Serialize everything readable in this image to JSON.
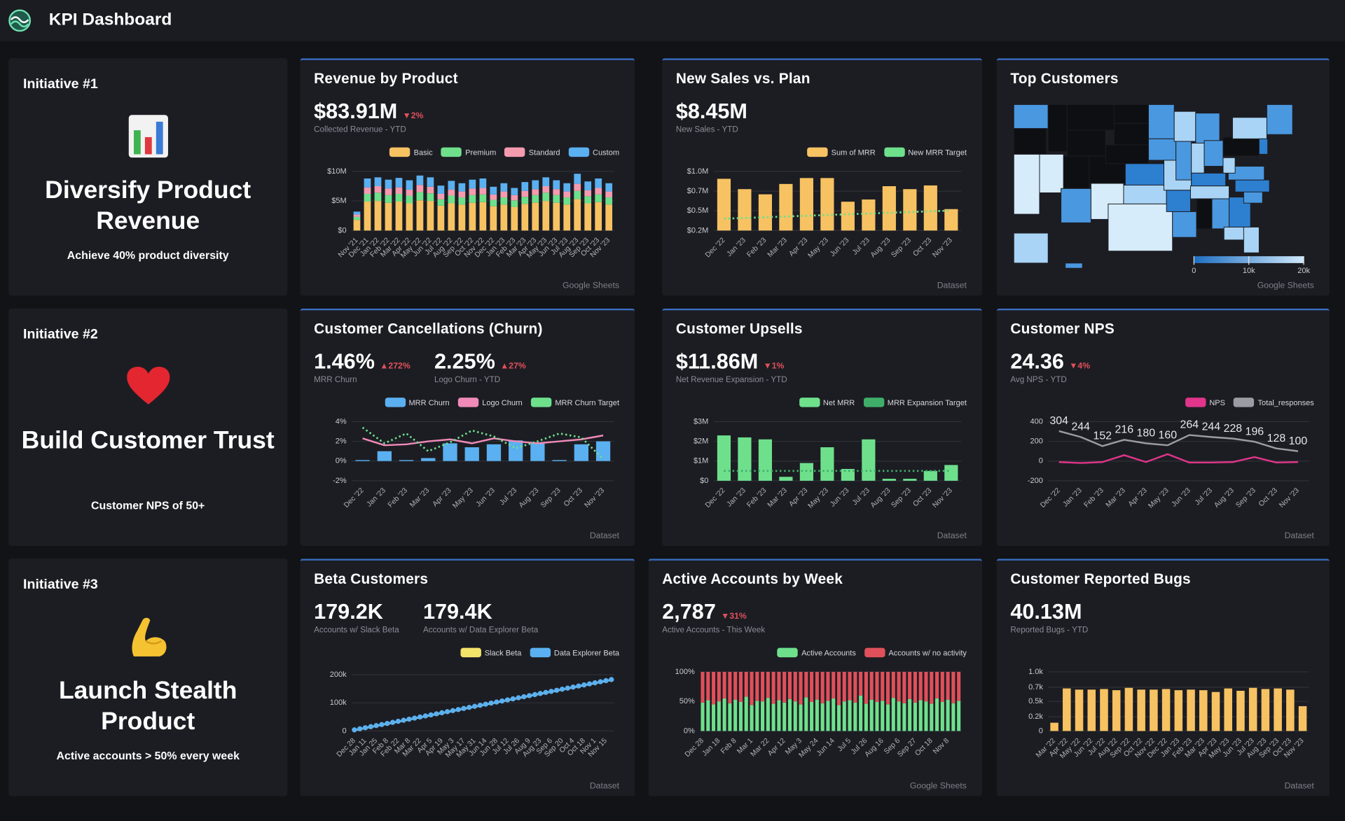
{
  "header": {
    "title": "KPI Dashboard"
  },
  "initiatives": [
    {
      "label": "Initiative #1",
      "title": "Diversify Product Revenue",
      "subtitle": "Achieve 40% product diversity"
    },
    {
      "label": "Initiative #2",
      "title": "Build Customer Trust",
      "subtitle": "Customer NPS of 50+"
    },
    {
      "label": "Initiative #3",
      "title": "Launch Stealth Product",
      "subtitle": "Active accounts > 50% every week"
    }
  ],
  "chart_data": [
    {
      "type": "stacked_bar",
      "title": "Revenue by Product",
      "source": "Google Sheets",
      "kpis": [
        {
          "value": "$83.91M",
          "change": "▼2%",
          "label": "Collected Revenue - YTD"
        }
      ],
      "categories": [
        "Nov '21",
        "Dec '21",
        "Jan '22",
        "Feb '22",
        "Mar '22",
        "Apr '22",
        "May '22",
        "Jun '22",
        "Jul '22",
        "Aug '22",
        "Sep '22",
        "Oct '22",
        "Nov '22",
        "Dec '22",
        "Jan '23",
        "Feb '23",
        "Mar '23",
        "Apr '23",
        "May '23",
        "Jun '23",
        "Jul '23",
        "Aug '23",
        "Sep '23",
        "Oct '23",
        "Nov '23"
      ],
      "series": [
        {
          "name": "Basic",
          "color": "#f7c262",
          "values": [
            1.8,
            4.9,
            5.0,
            4.7,
            4.9,
            4.6,
            5.1,
            5.0,
            4.2,
            4.6,
            4.4,
            4.7,
            4.8,
            4.1,
            4.4,
            4.0,
            4.5,
            4.7,
            5.0,
            4.7,
            4.4,
            5.3,
            4.6,
            4.8,
            4.4
          ]
        },
        {
          "name": "Premium",
          "color": "#6ee08c",
          "values": [
            0.5,
            1.3,
            1.4,
            1.3,
            1.3,
            1.3,
            1.4,
            1.3,
            1.1,
            1.3,
            1.2,
            1.3,
            1.3,
            1.1,
            1.2,
            1.1,
            1.2,
            1.3,
            1.4,
            1.3,
            1.2,
            1.4,
            1.2,
            1.3,
            1.2
          ]
        },
        {
          "name": "Standard",
          "color": "#f59bb0",
          "values": [
            0.4,
            1.1,
            1.1,
            1.1,
            1.1,
            1.0,
            1.2,
            1.1,
            0.9,
            1.0,
            1.0,
            1.1,
            1.1,
            0.9,
            1.0,
            0.9,
            1.0,
            1.0,
            1.1,
            1.0,
            1.0,
            1.2,
            1.0,
            1.1,
            1.0
          ]
        },
        {
          "name": "Custom",
          "color": "#5ab0f0",
          "values": [
            0.5,
            1.5,
            1.5,
            1.5,
            1.6,
            1.6,
            1.6,
            1.6,
            1.4,
            1.5,
            1.4,
            1.5,
            1.6,
            1.3,
            1.4,
            1.2,
            1.5,
            1.5,
            1.5,
            1.5,
            1.4,
            1.7,
            1.5,
            1.6,
            1.4
          ]
        }
      ],
      "ylim": [
        0,
        10
      ],
      "yticks": [
        {
          "value": 0,
          "label": "$0"
        },
        {
          "value": 5,
          "label": "$5M"
        },
        {
          "value": 10,
          "label": "$10M"
        }
      ]
    },
    {
      "type": "combo",
      "title": "New Sales vs. Plan",
      "source": "Dataset",
      "kpis": [
        {
          "value": "$8.45M",
          "label": "New Sales - YTD"
        }
      ],
      "categories": [
        "Dec '22",
        "Jan '23",
        "Feb '23",
        "Mar '23",
        "Apr '23",
        "May '23",
        "Jun '23",
        "Jul '23",
        "Aug '23",
        "Sep '23",
        "Oct '23",
        "Nov '23"
      ],
      "series": [
        {
          "name": "Sum of MRR",
          "color": "#f7c262",
          "mark": "bar",
          "values": [
            0.9,
            0.76,
            0.69,
            0.83,
            0.91,
            0.91,
            0.59,
            0.62,
            0.8,
            0.76,
            0.81,
            0.49
          ]
        },
        {
          "name": "New MRR Target",
          "color": "#6ee08c",
          "mark": "line",
          "dash": true,
          "values": [
            0.36,
            0.37,
            0.38,
            0.39,
            0.4,
            0.41,
            0.42,
            0.43,
            0.44,
            0.45,
            0.46,
            0.47
          ]
        }
      ],
      "ylim": [
        0.2,
        1.0
      ],
      "yticks": [
        {
          "value": 0.2,
          "label": "$0.2M"
        },
        {
          "value": 0.467,
          "label": "$0.5M"
        },
        {
          "value": 0.733,
          "label": "$0.7M"
        },
        {
          "value": 1.0,
          "label": "$1.0M"
        }
      ]
    },
    {
      "type": "map",
      "title": "Top Customers",
      "source": "Google Sheets",
      "colorbar": {
        "lim": [
          0,
          20000
        ],
        "colors": [
          "#1f6fc2",
          "#cfe8fb"
        ],
        "ticks": [
          0,
          {
            "value": 10000,
            "label": "10k"
          },
          {
            "value": 20000,
            "label": "20k"
          }
        ]
      }
    },
    {
      "type": "combo",
      "title": "Customer Cancellations (Churn)",
      "source": "Dataset",
      "kpis": [
        {
          "value": "1.46%",
          "change": "▲272%",
          "label": "MRR Churn"
        },
        {
          "value": "2.25%",
          "change": "▲27%",
          "label": "Logo Churn - YTD"
        }
      ],
      "categories": [
        "Dec '22",
        "Jan '23",
        "Feb '23",
        "Mar '23",
        "Apr '23",
        "May '23",
        "Jun '23",
        "Jul '23",
        "Aug '23",
        "Sep '23",
        "Oct '23",
        "Nov '23"
      ],
      "series": [
        {
          "name": "MRR Churn",
          "color": "#5ab0f0",
          "mark": "bar",
          "values": [
            0.1,
            1.0,
            0.1,
            0.3,
            1.8,
            1.4,
            1.7,
            2.1,
            1.9,
            0.1,
            1.7,
            2.0
          ]
        },
        {
          "name": "Logo Churn",
          "color": "#f08ab8",
          "mark": "line",
          "values": [
            2.3,
            1.6,
            1.7,
            2.0,
            2.2,
            1.8,
            2.3,
            2.0,
            1.8,
            2.0,
            2.2,
            2.6
          ]
        },
        {
          "name": "MRR Churn Target",
          "color": "#6ee08c",
          "mark": "line",
          "dash": true,
          "values": [
            3.4,
            1.8,
            2.8,
            1.0,
            1.9,
            3.1,
            2.5,
            1.3,
            2.0,
            2.8,
            2.4,
            0.2
          ]
        }
      ],
      "ylim": [
        -2,
        4
      ],
      "yticks": [
        {
          "value": -2,
          "label": "-2%"
        },
        {
          "value": 0,
          "label": "0%"
        },
        {
          "value": 2,
          "label": "2%"
        },
        {
          "value": 4,
          "label": "4%"
        }
      ]
    },
    {
      "type": "combo",
      "title": "Customer Upsells",
      "source": "Dataset",
      "kpis": [
        {
          "value": "$11.86M",
          "change": "▼1%",
          "label": "Net Revenue Expansion - YTD"
        }
      ],
      "categories": [
        "Dec '22",
        "Jan '23",
        "Feb '23",
        "Mar '23",
        "Apr '23",
        "May '23",
        "Jun '23",
        "Jul '23",
        "Aug '23",
        "Sep '23",
        "Oct '23",
        "Nov '23"
      ],
      "series": [
        {
          "name": "Net MRR",
          "color": "#6ee08c",
          "mark": "bar",
          "values": [
            2.3,
            2.2,
            2.1,
            0.2,
            0.9,
            1.7,
            0.6,
            2.1,
            0.1,
            0.1,
            0.5,
            0.8
          ]
        },
        {
          "name": "MRR Expansion Target",
          "color": "#3fae6a",
          "mark": "line",
          "dash": true,
          "values": [
            0.5,
            0.5,
            0.5,
            0.5,
            0.5,
            0.5,
            0.5,
            0.5,
            0.5,
            0.5,
            0.5,
            0.5
          ]
        }
      ],
      "ylim": [
        0,
        3
      ],
      "yticks": [
        {
          "value": 0,
          "label": "$0"
        },
        {
          "value": 1,
          "label": "$1M"
        },
        {
          "value": 2,
          "label": "$2M"
        },
        {
          "value": 3,
          "label": "$3M"
        }
      ]
    },
    {
      "type": "line",
      "title": "Customer NPS",
      "source": "Dataset",
      "kpis": [
        {
          "value": "24.36",
          "change": "▼4%",
          "label": "Avg NPS - YTD"
        }
      ],
      "categories": [
        "Dec '22",
        "Jan '23",
        "Feb '23",
        "Mar '23",
        "Apr '23",
        "May '23",
        "Jun '23",
        "Jul '23",
        "Aug '23",
        "Sep '23",
        "Oct '23",
        "Nov '23"
      ],
      "series": [
        {
          "name": "NPS",
          "color": "#e0358a",
          "values": [
            -10,
            -20,
            -10,
            60,
            -10,
            70,
            -15,
            -15,
            -10,
            40,
            -15,
            -10
          ]
        },
        {
          "name": "Total_responses",
          "color": "#9a9ca3",
          "data_labels": true,
          "values": [
            304,
            244,
            152,
            216,
            180,
            160,
            264,
            244,
            228,
            196,
            128,
            100
          ]
        }
      ],
      "ylim": [
        -200,
        400
      ],
      "yticks": [
        -200,
        0,
        200,
        400
      ]
    },
    {
      "type": "line",
      "title": "Beta Customers",
      "source": "Dataset",
      "kpis": [
        {
          "value": "179.2K",
          "label": "Accounts w/ Slack Beta"
        },
        {
          "value": "179.4K",
          "label": "Accounts w/ Data Explorer Beta"
        }
      ],
      "categories": [
        "Dec 28",
        null,
        "Jan 11",
        null,
        "Jan 25",
        null,
        "Feb 8",
        null,
        "Feb 22",
        null,
        "Mar 8",
        null,
        "Mar 22",
        null,
        "Apr 5",
        null,
        "Apr 19",
        null,
        "May 3",
        null,
        "May 17",
        null,
        "May 31",
        null,
        "Jun 14",
        null,
        "Jun 28",
        null,
        "Jul 12",
        null,
        "Jul 26",
        null,
        "Aug 9",
        null,
        "Aug 23",
        null,
        "Sep 6",
        null,
        "Sep 20",
        null,
        "Oct 4",
        null,
        "Oct 18",
        null,
        "Nov 1",
        null,
        "Nov 15",
        null
      ],
      "series": [
        {
          "name": "Slack Beta",
          "color": "#f5e46a",
          "values": [
            2.5,
            6.3,
            10.1,
            13.9,
            17.7,
            21.5,
            25.3,
            29.1,
            32.9,
            36.7,
            40.5,
            44.3,
            48.1,
            51.9,
            55.7,
            59.5,
            63.3,
            67.1,
            70.9,
            74.7,
            78.5,
            82.3,
            86.1,
            89.9,
            93.7,
            97.5,
            101.3,
            105.1,
            108.9,
            112.7,
            116.5,
            120.3,
            124.1,
            127.9,
            131.7,
            135.5,
            139.3,
            143.1,
            146.9,
            150.7,
            154.5,
            158.3,
            162.1,
            165.9,
            169.7,
            173.5,
            177.3,
            181.1
          ]
        },
        {
          "name": "Data Explorer Beta",
          "color": "#5ab0f0",
          "markers": true,
          "values": [
            4.0,
            7.8,
            11.6,
            15.4,
            19.2,
            23.0,
            26.8,
            30.6,
            34.4,
            38.2,
            42.0,
            45.8,
            49.6,
            53.4,
            57.2,
            61.0,
            64.8,
            68.6,
            72.4,
            76.2,
            80.0,
            83.8,
            87.6,
            91.4,
            95.2,
            99.0,
            102.8,
            106.6,
            110.4,
            114.2,
            118.0,
            121.8,
            125.6,
            129.4,
            133.2,
            137.0,
            140.8,
            144.6,
            148.4,
            152.2,
            156.0,
            159.8,
            163.6,
            167.4,
            171.2,
            175.0,
            178.8,
            182.6
          ]
        }
      ],
      "ylim": [
        0,
        210
      ],
      "yticks": [
        0,
        {
          "value": 100,
          "label": "100k"
        },
        {
          "value": 200,
          "label": "200k"
        }
      ]
    },
    {
      "type": "stacked_bar",
      "title": "Active Accounts by Week",
      "source": "Google Sheets",
      "kpis": [
        {
          "value": "2,787",
          "change": "▼31%",
          "label": "Active Accounts - This Week"
        }
      ],
      "categories": [
        "Dec 28",
        null,
        null,
        "Jan 18",
        null,
        null,
        "Feb 8",
        null,
        null,
        "Mar 1",
        null,
        null,
        "Mar 22",
        null,
        null,
        "Apr 12",
        null,
        null,
        "May 3",
        null,
        null,
        "May 24",
        null,
        null,
        "Jun 14",
        null,
        null,
        "Jul 5",
        null,
        null,
        "Jul 26",
        null,
        null,
        "Aug 16",
        null,
        null,
        "Sep 6",
        null,
        null,
        "Sep 27",
        null,
        null,
        "Oct 18",
        null,
        null,
        "Nov 8",
        null,
        null
      ],
      "series": [
        {
          "name": "Active Accounts",
          "color": "#6ee08c",
          "values": [
            48,
            52,
            45,
            50,
            55,
            47,
            53,
            49,
            58,
            44,
            51,
            50,
            56,
            46,
            52,
            48,
            54,
            50,
            45,
            57,
            49,
            53,
            47,
            51,
            55,
            44,
            50,
            52,
            48,
            60,
            46,
            53,
            49,
            51,
            45,
            56,
            50,
            47,
            54,
            48,
            52,
            50,
            46,
            55,
            49,
            53,
            47,
            51
          ]
        },
        {
          "name": "Accounts w/ no activity",
          "color": "#e0505a",
          "values": [
            52,
            48,
            55,
            50,
            45,
            53,
            47,
            51,
            42,
            56,
            49,
            50,
            44,
            54,
            48,
            52,
            46,
            50,
            55,
            43,
            51,
            47,
            53,
            49,
            45,
            56,
            50,
            48,
            52,
            40,
            54,
            47,
            51,
            49,
            55,
            44,
            50,
            53,
            46,
            52,
            48,
            50,
            54,
            45,
            51,
            47,
            53,
            49
          ]
        }
      ],
      "ylim": [
        0,
        100
      ],
      "yticks": [
        {
          "value": 0,
          "label": "0%"
        },
        {
          "value": 50,
          "label": "50%"
        },
        {
          "value": 100,
          "label": "100%"
        }
      ]
    },
    {
      "type": "bar",
      "title": "Customer Reported Bugs",
      "source": "Dataset",
      "kpis": [
        {
          "value": "40.13M",
          "label": "Reported Bugs - YTD"
        }
      ],
      "categories": [
        "Mar '22",
        "Apr '22",
        "May '22",
        "Jun '22",
        "Jul '22",
        "Aug '22",
        "Sep '22",
        "Oct '22",
        "Nov '22",
        "Dec '22",
        "Jan '23",
        "Feb '23",
        "Mar '23",
        "Apr '23",
        "May '23",
        "Jun '23",
        "Jul '23",
        "Aug '23",
        "Sep '23",
        "Oct '23",
        "Nov '23"
      ],
      "values": [
        140,
        720,
        700,
        700,
        710,
        690,
        730,
        700,
        700,
        710,
        690,
        700,
        690,
        660,
        720,
        680,
        730,
        710,
        720,
        700,
        420
      ],
      "color": "#f7c262",
      "ylim": [
        0,
        1000
      ],
      "yticks": [
        0,
        {
          "value": 240,
          "label": "0.2k"
        },
        {
          "value": 500,
          "label": "0.5k"
        },
        {
          "value": 740,
          "label": "0.7k"
        },
        {
          "value": 1000,
          "label": "1.0k"
        }
      ]
    }
  ]
}
